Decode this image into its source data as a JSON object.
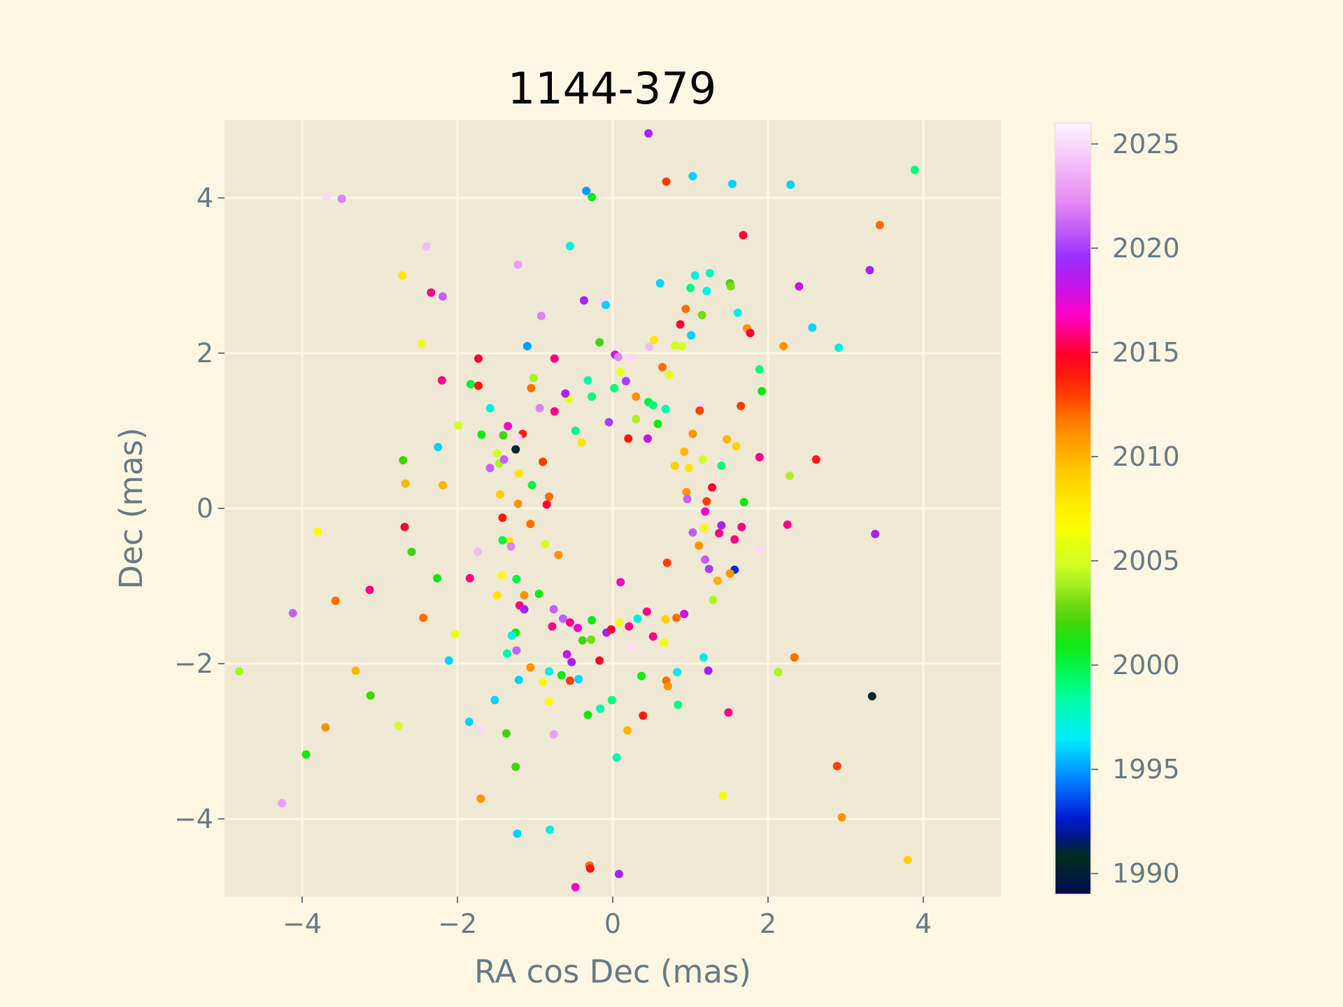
{
  "chart_data": {
    "type": "scatter",
    "title": "1144-379",
    "xlabel": "RA cos Dec (mas)",
    "ylabel": "Dec (mas)",
    "xlim": [
      -5,
      5
    ],
    "ylim": [
      -5,
      5
    ],
    "xticks": [
      -4,
      -2,
      0,
      2,
      4
    ],
    "yticks": [
      -4,
      -2,
      0,
      2,
      4
    ],
    "grid": true,
    "colorbar": {
      "label": "",
      "range": [
        1989,
        2026
      ],
      "ticks": [
        1990,
        1995,
        2000,
        2005,
        2010,
        2015,
        2020,
        2025
      ]
    },
    "colors": {
      "figure_background": "#fdf6e3",
      "axes_background": "#eee8d5",
      "grid": "#fdf6e3",
      "tick_color": "#657b83"
    },
    "points": [
      {
        "x": 0.46,
        "y": 4.83,
        "year": 2019
      },
      {
        "x": -0.34,
        "y": 4.09,
        "year": 1995
      },
      {
        "x": -0.27,
        "y": 4.01,
        "year": 2001
      },
      {
        "x": 1.03,
        "y": 4.28,
        "year": 1996
      },
      {
        "x": 0.69,
        "y": 4.21,
        "year": 2013
      },
      {
        "x": 1.54,
        "y": 4.18,
        "year": 1996
      },
      {
        "x": 2.29,
        "y": 4.17,
        "year": 1996
      },
      {
        "x": 3.89,
        "y": 4.36,
        "year": 1999
      },
      {
        "x": -3.69,
        "y": 4.01,
        "year": 2025
      },
      {
        "x": -3.49,
        "y": 3.99,
        "year": 2022
      },
      {
        "x": 1.68,
        "y": 3.52,
        "year": 2015
      },
      {
        "x": 3.44,
        "y": 3.65,
        "year": 2012
      },
      {
        "x": -0.55,
        "y": 3.38,
        "year": 1997
      },
      {
        "x": -2.4,
        "y": 3.37,
        "year": 2024
      },
      {
        "x": -1.22,
        "y": 3.14,
        "year": 2023
      },
      {
        "x": -2.71,
        "y": 3.0,
        "year": 2008
      },
      {
        "x": 1.06,
        "y": 3.0,
        "year": 1997
      },
      {
        "x": 1.25,
        "y": 3.03,
        "year": 1998
      },
      {
        "x": 1.51,
        "y": 2.9,
        "year": 2002
      },
      {
        "x": 1.52,
        "y": 2.86,
        "year": 2003
      },
      {
        "x": 0.61,
        "y": 2.9,
        "year": 1996
      },
      {
        "x": 3.31,
        "y": 3.07,
        "year": 2019
      },
      {
        "x": 2.4,
        "y": 2.86,
        "year": 2018
      },
      {
        "x": -2.34,
        "y": 2.78,
        "year": 2016
      },
      {
        "x": -2.19,
        "y": 2.73,
        "year": 2021
      },
      {
        "x": 1.0,
        "y": 2.84,
        "year": 1999
      },
      {
        "x": 1.21,
        "y": 2.8,
        "year": 1997
      },
      {
        "x": -0.37,
        "y": 2.68,
        "year": 2019
      },
      {
        "x": -0.12,
        "y": 2.67,
        "year": 2025
      },
      {
        "x": -0.09,
        "y": 2.62,
        "year": 1996
      },
      {
        "x": -0.92,
        "y": 2.48,
        "year": 2022
      },
      {
        "x": 0.94,
        "y": 2.57,
        "year": 2012
      },
      {
        "x": 1.15,
        "y": 2.49,
        "year": 2003
      },
      {
        "x": 1.61,
        "y": 2.52,
        "year": 1997
      },
      {
        "x": 1.73,
        "y": 2.32,
        "year": 2011
      },
      {
        "x": 1.77,
        "y": 2.26,
        "year": 2015
      },
      {
        "x": 0.87,
        "y": 2.37,
        "year": 2015
      },
      {
        "x": 1.01,
        "y": 2.23,
        "year": 1996
      },
      {
        "x": 2.57,
        "y": 2.33,
        "year": 1996
      },
      {
        "x": 2.91,
        "y": 2.07,
        "year": 1997
      },
      {
        "x": 2.2,
        "y": 2.09,
        "year": 2011
      },
      {
        "x": -2.46,
        "y": 2.12,
        "year": 2006
      },
      {
        "x": -1.1,
        "y": 2.09,
        "year": 1995
      },
      {
        "x": -0.17,
        "y": 2.14,
        "year": 2002
      },
      {
        "x": 0.53,
        "y": 2.17,
        "year": 2008
      },
      {
        "x": 0.47,
        "y": 2.08,
        "year": 2024
      },
      {
        "x": 0.8,
        "y": 2.1,
        "year": 2005
      },
      {
        "x": 0.89,
        "y": 2.09,
        "year": 2005
      },
      {
        "x": -1.73,
        "y": 1.93,
        "year": 2015
      },
      {
        "x": -0.75,
        "y": 1.93,
        "year": 2016
      },
      {
        "x": 0.03,
        "y": 1.98,
        "year": 2018
      },
      {
        "x": 0.07,
        "y": 1.95,
        "year": 2022
      },
      {
        "x": 0.23,
        "y": 1.94,
        "year": 2025
      },
      {
        "x": -2.2,
        "y": 1.65,
        "year": 2016
      },
      {
        "x": -1.83,
        "y": 1.6,
        "year": 2000
      },
      {
        "x": -1.73,
        "y": 1.58,
        "year": 2014
      },
      {
        "x": -1.02,
        "y": 1.68,
        "year": 2004
      },
      {
        "x": -1.05,
        "y": 1.55,
        "year": 2012
      },
      {
        "x": -0.32,
        "y": 1.65,
        "year": 1998
      },
      {
        "x": 0.02,
        "y": 1.55,
        "year": 1999
      },
      {
        "x": 0.17,
        "y": 1.64,
        "year": 2020
      },
      {
        "x": 0.1,
        "y": 1.76,
        "year": 2006
      },
      {
        "x": 0.73,
        "y": 1.72,
        "year": 2006
      },
      {
        "x": 0.64,
        "y": 1.82,
        "year": 2012
      },
      {
        "x": 1.89,
        "y": 1.79,
        "year": 1999
      },
      {
        "x": 1.92,
        "y": 1.51,
        "year": 2001
      },
      {
        "x": -1.58,
        "y": 1.29,
        "year": 1997
      },
      {
        "x": -0.57,
        "y": 1.41,
        "year": 2006
      },
      {
        "x": -0.61,
        "y": 1.48,
        "year": 2019
      },
      {
        "x": -0.94,
        "y": 1.29,
        "year": 2022
      },
      {
        "x": -0.75,
        "y": 1.25,
        "year": 2016
      },
      {
        "x": -0.27,
        "y": 1.44,
        "year": 1999
      },
      {
        "x": 0.3,
        "y": 1.44,
        "year": 2011
      },
      {
        "x": 0.46,
        "y": 1.37,
        "year": 2000
      },
      {
        "x": 0.52,
        "y": 1.33,
        "year": 1999
      },
      {
        "x": 0.68,
        "y": 1.28,
        "year": 1998
      },
      {
        "x": 1.13,
        "y": 1.34,
        "year": 2025
      },
      {
        "x": 1.65,
        "y": 1.32,
        "year": 2013
      },
      {
        "x": -1.99,
        "y": 1.07,
        "year": 2005
      },
      {
        "x": -1.69,
        "y": 0.95,
        "year": 2001
      },
      {
        "x": -1.41,
        "y": 0.94,
        "year": 2002
      },
      {
        "x": -1.35,
        "y": 1.06,
        "year": 2017
      },
      {
        "x": -1.16,
        "y": 0.96,
        "year": 2014
      },
      {
        "x": -0.48,
        "y": 1.0,
        "year": 1999
      },
      {
        "x": -0.05,
        "y": 1.11,
        "year": 2020
      },
      {
        "x": 0.3,
        "y": 1.15,
        "year": 2004
      },
      {
        "x": 0.58,
        "y": 1.09,
        "year": 2001
      },
      {
        "x": 1.12,
        "y": 1.26,
        "year": 2013
      },
      {
        "x": 1.47,
        "y": 0.89,
        "year": 2010
      },
      {
        "x": 1.59,
        "y": 0.8,
        "year": 2009
      },
      {
        "x": 1.89,
        "y": 0.66,
        "year": 2016
      },
      {
        "x": 2.62,
        "y": 0.63,
        "year": 2014
      },
      {
        "x": -2.25,
        "y": 0.79,
        "year": 1996
      },
      {
        "x": -2.7,
        "y": 0.62,
        "year": 2002
      },
      {
        "x": -1.22,
        "y": 0.91,
        "year": 2025
      },
      {
        "x": -1.49,
        "y": 0.71,
        "year": 2005
      },
      {
        "x": -1.25,
        "y": 0.76,
        "year": 1991
      },
      {
        "x": -1.58,
        "y": 0.52,
        "year": 2021
      },
      {
        "x": -2.67,
        "y": 0.32,
        "year": 2010
      },
      {
        "x": -2.19,
        "y": 0.3,
        "year": 2010
      },
      {
        "x": -1.46,
        "y": 0.58,
        "year": 2004
      },
      {
        "x": -1.21,
        "y": 0.45,
        "year": 2008
      },
      {
        "x": -1.4,
        "y": 0.63,
        "year": 2021
      },
      {
        "x": -0.9,
        "y": 0.6,
        "year": 2013
      },
      {
        "x": 0.92,
        "y": 0.73,
        "year": 2010
      },
      {
        "x": 1.03,
        "y": 0.96,
        "year": 2011
      },
      {
        "x": 1.16,
        "y": 0.63,
        "year": 2005
      },
      {
        "x": 0.98,
        "y": 0.52,
        "year": 2008
      },
      {
        "x": 1.4,
        "y": 0.55,
        "year": 1999
      },
      {
        "x": 1.28,
        "y": 0.27,
        "year": 2015
      },
      {
        "x": 2.28,
        "y": 0.42,
        "year": 2004
      },
      {
        "x": -1.45,
        "y": 0.18,
        "year": 2009
      },
      {
        "x": -1.22,
        "y": 0.06,
        "year": 2011
      },
      {
        "x": -1.04,
        "y": 0.3,
        "year": 2000
      },
      {
        "x": -0.82,
        "y": 0.15,
        "year": 2012
      },
      {
        "x": 0.95,
        "y": 0.21,
        "year": 2011
      },
      {
        "x": 1.21,
        "y": 0.09,
        "year": 2013
      },
      {
        "x": 1.69,
        "y": 0.08,
        "year": 2001
      },
      {
        "x": 1.19,
        "y": -0.04,
        "year": 2017
      },
      {
        "x": -3.8,
        "y": -0.3,
        "year": 2007
      },
      {
        "x": -2.68,
        "y": -0.24,
        "year": 2015
      },
      {
        "x": -2.59,
        "y": -0.56,
        "year": 2002
      },
      {
        "x": -1.42,
        "y": -0.12,
        "year": 2014
      },
      {
        "x": -1.33,
        "y": -0.42,
        "year": 2008
      },
      {
        "x": -1.42,
        "y": -0.41,
        "year": 2000
      },
      {
        "x": -1.31,
        "y": -0.49,
        "year": 2022
      },
      {
        "x": -1.74,
        "y": -0.56,
        "year": 2024
      },
      {
        "x": -0.87,
        "y": -0.46,
        "year": 2005
      },
      {
        "x": -1.06,
        "y": -0.2,
        "year": 2012
      },
      {
        "x": 1.03,
        "y": -0.31,
        "year": 2021
      },
      {
        "x": 1.37,
        "y": -0.32,
        "year": 2016
      },
      {
        "x": 1.4,
        "y": -0.22,
        "year": 2019
      },
      {
        "x": 1.66,
        "y": -0.24,
        "year": 2016
      },
      {
        "x": 1.57,
        "y": -0.4,
        "year": 2016
      },
      {
        "x": 1.89,
        "y": -0.53,
        "year": 2025
      },
      {
        "x": 2.25,
        "y": -0.21,
        "year": 2016
      },
      {
        "x": 3.38,
        "y": -0.33,
        "year": 2019
      },
      {
        "x": 1.11,
        "y": -0.48,
        "year": 2011
      },
      {
        "x": 1.19,
        "y": -0.66,
        "year": 2021
      },
      {
        "x": 1.57,
        "y": -0.79,
        "year": 1993
      },
      {
        "x": 1.51,
        "y": -0.84,
        "year": 2011
      },
      {
        "x": 1.24,
        "y": -0.78,
        "year": 2020
      },
      {
        "x": 1.35,
        "y": -0.93,
        "year": 2010
      },
      {
        "x": 1.29,
        "y": -1.18,
        "year": 2004
      },
      {
        "x": -2.26,
        "y": -0.9,
        "year": 2001
      },
      {
        "x": -1.84,
        "y": -0.9,
        "year": 2016
      },
      {
        "x": -3.13,
        "y": -1.05,
        "year": 2016
      },
      {
        "x": -3.57,
        "y": -1.19,
        "year": 2012
      },
      {
        "x": -4.12,
        "y": -1.35,
        "year": 2021
      },
      {
        "x": -1.43,
        "y": -0.86,
        "year": 2007
      },
      {
        "x": -1.24,
        "y": -0.91,
        "year": 2000
      },
      {
        "x": -1.14,
        "y": -1.12,
        "year": 2011
      },
      {
        "x": -1.49,
        "y": -1.12,
        "year": 2008
      },
      {
        "x": -1.2,
        "y": -1.25,
        "year": 2016
      },
      {
        "x": -1.14,
        "y": -1.3,
        "year": 2019
      },
      {
        "x": -0.95,
        "y": -1.1,
        "year": 2001
      },
      {
        "x": -0.76,
        "y": -1.3,
        "year": 2021
      },
      {
        "x": -2.44,
        "y": -1.41,
        "year": 2012
      },
      {
        "x": -0.64,
        "y": -1.42,
        "year": 2021
      },
      {
        "x": -0.78,
        "y": -1.52,
        "year": 2016
      },
      {
        "x": -0.55,
        "y": -1.47,
        "year": 2016
      },
      {
        "x": -0.45,
        "y": -1.54,
        "year": 2017
      },
      {
        "x": -0.27,
        "y": -1.44,
        "year": 2001
      },
      {
        "x": -0.39,
        "y": -1.7,
        "year": 2002
      },
      {
        "x": -0.28,
        "y": -1.69,
        "year": 2003
      },
      {
        "x": -0.08,
        "y": -1.6,
        "year": 2019
      },
      {
        "x": -0.02,
        "y": -1.56,
        "year": 2015
      },
      {
        "x": 0.09,
        "y": -1.47,
        "year": 2006
      },
      {
        "x": 0.21,
        "y": -1.52,
        "year": 2016
      },
      {
        "x": 0.32,
        "y": -1.42,
        "year": 1997
      },
      {
        "x": 0.44,
        "y": -1.33,
        "year": 2016
      },
      {
        "x": 0.52,
        "y": -1.65,
        "year": 2016
      },
      {
        "x": 0.68,
        "y": -1.43,
        "year": 2009
      },
      {
        "x": 0.82,
        "y": -1.41,
        "year": 2012
      },
      {
        "x": 0.92,
        "y": -1.36,
        "year": 2018
      },
      {
        "x": 0.66,
        "y": -1.73,
        "year": 2006
      },
      {
        "x": 0.24,
        "y": -1.8,
        "year": 2025
      },
      {
        "x": -1.25,
        "y": -1.6,
        "year": 2001
      },
      {
        "x": -1.3,
        "y": -1.64,
        "year": 1997
      },
      {
        "x": -2.03,
        "y": -1.62,
        "year": 2006
      },
      {
        "x": -1.36,
        "y": -1.87,
        "year": 1998
      },
      {
        "x": -1.24,
        "y": -1.83,
        "year": 2021
      },
      {
        "x": -0.59,
        "y": -1.88,
        "year": 2018
      },
      {
        "x": -0.17,
        "y": -1.96,
        "year": 2015
      },
      {
        "x": -0.53,
        "y": -1.98,
        "year": 2019
      },
      {
        "x": -1.06,
        "y": -2.05,
        "year": 2011
      },
      {
        "x": -0.82,
        "y": -2.1,
        "year": 1997
      },
      {
        "x": -2.11,
        "y": -1.96,
        "year": 1996
      },
      {
        "x": -3.31,
        "y": -2.09,
        "year": 2010
      },
      {
        "x": -4.81,
        "y": -2.1,
        "year": 2004
      },
      {
        "x": -1.21,
        "y": -2.21,
        "year": 1996
      },
      {
        "x": -0.9,
        "y": -2.24,
        "year": 2007
      },
      {
        "x": -0.66,
        "y": -2.15,
        "year": 2001
      },
      {
        "x": -0.55,
        "y": -2.22,
        "year": 2013
      },
      {
        "x": -0.44,
        "y": -2.2,
        "year": 1996
      },
      {
        "x": 0.37,
        "y": -2.16,
        "year": 2001
      },
      {
        "x": 0.69,
        "y": -2.22,
        "year": 2012
      },
      {
        "x": 0.71,
        "y": -2.29,
        "year": 2011
      },
      {
        "x": 0.83,
        "y": -2.11,
        "year": 1997
      },
      {
        "x": 1.17,
        "y": -1.92,
        "year": 1997
      },
      {
        "x": 1.23,
        "y": -2.09,
        "year": 2019
      },
      {
        "x": 2.13,
        "y": -2.11,
        "year": 2004
      },
      {
        "x": 2.34,
        "y": -1.92,
        "year": 2012
      },
      {
        "x": -1.52,
        "y": -2.47,
        "year": 1996
      },
      {
        "x": -0.82,
        "y": -2.49,
        "year": 2007
      },
      {
        "x": -0.32,
        "y": -2.66,
        "year": 2001
      },
      {
        "x": -0.16,
        "y": -2.58,
        "year": 1998
      },
      {
        "x": -0.01,
        "y": -2.47,
        "year": 1999
      },
      {
        "x": -3.12,
        "y": -2.41,
        "year": 2002
      },
      {
        "x": 0.39,
        "y": -2.67,
        "year": 2014
      },
      {
        "x": 0.84,
        "y": -2.53,
        "year": 1999
      },
      {
        "x": 1.49,
        "y": -2.63,
        "year": 2016
      },
      {
        "x": 3.34,
        "y": -2.42,
        "year": 1991
      },
      {
        "x": -1.85,
        "y": -2.75,
        "year": 1996
      },
      {
        "x": -1.7,
        "y": -2.85,
        "year": 2025
      },
      {
        "x": -2.76,
        "y": -2.8,
        "year": 2005
      },
      {
        "x": -3.7,
        "y": -2.82,
        "year": 2011
      },
      {
        "x": -1.37,
        "y": -2.9,
        "year": 2002
      },
      {
        "x": -0.76,
        "y": -2.91,
        "year": 2023
      },
      {
        "x": 0.19,
        "y": -2.86,
        "year": 2010
      },
      {
        "x": 0.05,
        "y": -3.21,
        "year": 1998
      },
      {
        "x": -3.95,
        "y": -3.17,
        "year": 2001
      },
      {
        "x": -1.25,
        "y": -3.33,
        "year": 2002
      },
      {
        "x": 2.89,
        "y": -3.32,
        "year": 2013
      },
      {
        "x": 1.42,
        "y": -3.7,
        "year": 2006
      },
      {
        "x": -1.7,
        "y": -3.74,
        "year": 2011
      },
      {
        "x": -4.26,
        "y": -3.8,
        "year": 2023
      },
      {
        "x": 2.95,
        "y": -3.98,
        "year": 2011
      },
      {
        "x": -1.23,
        "y": -4.19,
        "year": 1996
      },
      {
        "x": -0.81,
        "y": -4.14,
        "year": 1997
      },
      {
        "x": 3.8,
        "y": -4.53,
        "year": 2009
      },
      {
        "x": -0.3,
        "y": -4.6,
        "year": 2012
      },
      {
        "x": -0.29,
        "y": -4.64,
        "year": 2014
      },
      {
        "x": 0.08,
        "y": -4.71,
        "year": 2019
      },
      {
        "x": -0.48,
        "y": -4.88,
        "year": 2017
      },
      {
        "x": 0.96,
        "y": 0.12,
        "year": 2021
      },
      {
        "x": 1.18,
        "y": -0.25,
        "year": 2007
      },
      {
        "x": 0.45,
        "y": 0.9,
        "year": 2018
      },
      {
        "x": -0.4,
        "y": 0.85,
        "year": 2008
      },
      {
        "x": 0.2,
        "y": 0.9,
        "year": 2014
      },
      {
        "x": 0.8,
        "y": 0.55,
        "year": 2009
      },
      {
        "x": -0.85,
        "y": 0.05,
        "year": 2015
      },
      {
        "x": -0.7,
        "y": -0.6,
        "year": 2011
      },
      {
        "x": 0.7,
        "y": -0.7,
        "year": 2013
      },
      {
        "x": 0.1,
        "y": -0.95,
        "year": 2017
      }
    ]
  }
}
